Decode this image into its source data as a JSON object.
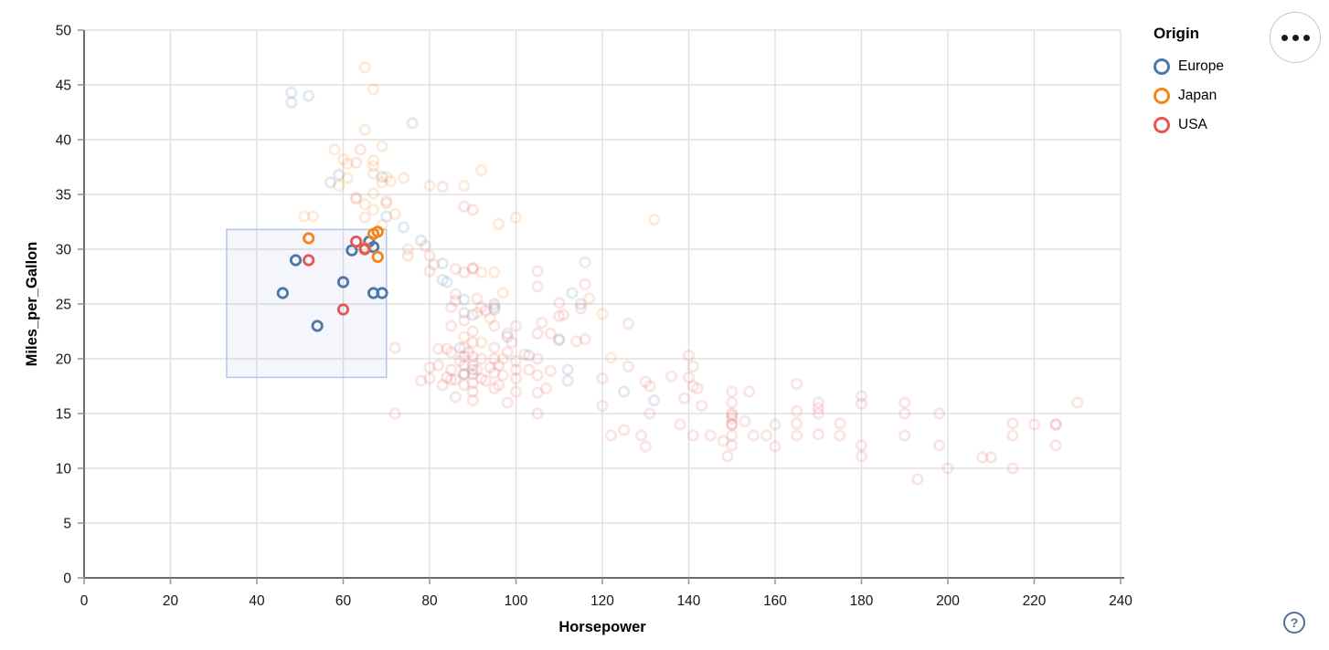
{
  "legend": {
    "title": "Origin",
    "items": [
      {
        "label": "Europe",
        "color": "#4c78a8"
      },
      {
        "label": "Japan",
        "color": "#f58518"
      },
      {
        "label": "USA",
        "color": "#e45756"
      }
    ]
  },
  "buttons": {
    "help_label": "?",
    "options_menu": "ellipsis-menu"
  },
  "chart_data": {
    "type": "scatter",
    "title": "",
    "xlabel": "Horsepower",
    "ylabel": "Miles_per_Gallon",
    "xlim": [
      0,
      240
    ],
    "ylim": [
      0,
      50
    ],
    "xticks": [
      0,
      20,
      40,
      60,
      80,
      100,
      120,
      140,
      160,
      180,
      200,
      220,
      240
    ],
    "yticks": [
      0,
      5,
      10,
      15,
      20,
      25,
      30,
      35,
      40,
      45,
      50
    ],
    "grid": true,
    "legend_position": "top-right",
    "legend_title": "Origin",
    "colors": {
      "Europe": "#4c78a8",
      "Japan": "#f58518",
      "USA": "#e45756"
    },
    "origin_codes": {
      "E": "Europe",
      "J": "Japan",
      "U": "USA"
    },
    "marker": {
      "shape": "open-circle",
      "radius": 5.2,
      "stroke_width": 2.8
    },
    "opacity": {
      "selected": 1.0,
      "unselected": 0.16
    },
    "brush_selection": {
      "x": [
        33,
        70
      ],
      "y": [
        18.3,
        31.8
      ],
      "fill": "#6e8fd1",
      "fill_opacity": 0.08,
      "stroke": "#b5c6ec"
    },
    "points": [
      [
        46,
        26,
        "E",
        1
      ],
      [
        49,
        29,
        "E",
        1
      ],
      [
        54,
        23,
        "E",
        1
      ],
      [
        60,
        27,
        "E",
        1
      ],
      [
        62,
        29.9,
        "E",
        1
      ],
      [
        66,
        30.7,
        "E",
        1
      ],
      [
        67,
        30.2,
        "E",
        1
      ],
      [
        67,
        26,
        "E",
        1
      ],
      [
        69,
        26,
        "E",
        1
      ],
      [
        52,
        31,
        "J",
        1
      ],
      [
        65,
        30.1,
        "J",
        1
      ],
      [
        67,
        31.4,
        "J",
        1
      ],
      [
        68,
        31.6,
        "J",
        1
      ],
      [
        68,
        29.3,
        "J",
        1
      ],
      [
        52,
        29,
        "U",
        1
      ],
      [
        60,
        24.5,
        "U",
        1
      ],
      [
        63,
        30.7,
        "U",
        1
      ],
      [
        65,
        30,
        "U",
        1
      ],
      [
        48,
        44.3,
        "E",
        0
      ],
      [
        48,
        43.4,
        "E",
        0
      ],
      [
        52,
        44,
        "E",
        0
      ],
      [
        76,
        41.5,
        "E",
        0
      ],
      [
        57,
        36.1,
        "E",
        0
      ],
      [
        59,
        36.8,
        "E",
        0
      ],
      [
        69,
        36.6,
        "E",
        0
      ],
      [
        74,
        32,
        "E",
        0
      ],
      [
        70,
        33,
        "E",
        0
      ],
      [
        78,
        30.8,
        "E",
        0
      ],
      [
        83,
        28.7,
        "E",
        0
      ],
      [
        84,
        27,
        "E",
        0
      ],
      [
        83,
        27.2,
        "E",
        0
      ],
      [
        88,
        24.2,
        "E",
        0
      ],
      [
        95,
        24.5,
        "E",
        0
      ],
      [
        87,
        21,
        "E",
        0
      ],
      [
        90,
        19,
        "E",
        0
      ],
      [
        88,
        18.6,
        "E",
        0
      ],
      [
        113,
        26,
        "E",
        0
      ],
      [
        112,
        19,
        "E",
        0
      ],
      [
        112,
        18,
        "E",
        0
      ],
      [
        115,
        25,
        "E",
        0
      ],
      [
        110,
        21.7,
        "E",
        0
      ],
      [
        125,
        17,
        "E",
        0
      ],
      [
        132,
        16.2,
        "E",
        0
      ],
      [
        103,
        20.3,
        "E",
        0
      ],
      [
        98,
        22,
        "E",
        0
      ],
      [
        90,
        24,
        "E",
        0
      ],
      [
        95,
        25,
        "E",
        0
      ],
      [
        88,
        25.4,
        "E",
        0
      ],
      [
        65,
        46.6,
        "J",
        0
      ],
      [
        67,
        44.6,
        "J",
        0
      ],
      [
        65,
        40.9,
        "J",
        0
      ],
      [
        69,
        39.4,
        "J",
        0
      ],
      [
        58,
        39.1,
        "J",
        0
      ],
      [
        60,
        38.2,
        "J",
        0
      ],
      [
        61,
        37.8,
        "J",
        0
      ],
      [
        67,
        38.1,
        "J",
        0
      ],
      [
        67,
        37.6,
        "J",
        0
      ],
      [
        67,
        36.9,
        "J",
        0
      ],
      [
        71,
        36.2,
        "J",
        0
      ],
      [
        70,
        36.6,
        "J",
        0
      ],
      [
        80,
        35.8,
        "J",
        0
      ],
      [
        88,
        35.8,
        "J",
        0
      ],
      [
        92,
        37.2,
        "J",
        0
      ],
      [
        59,
        35.8,
        "J",
        0
      ],
      [
        61,
        36.5,
        "J",
        0
      ],
      [
        63,
        34.6,
        "J",
        0
      ],
      [
        65,
        34.1,
        "J",
        0
      ],
      [
        67,
        35.1,
        "J",
        0
      ],
      [
        67,
        33.6,
        "J",
        0
      ],
      [
        69,
        36.1,
        "J",
        0
      ],
      [
        70,
        34.4,
        "J",
        0
      ],
      [
        72,
        33.2,
        "J",
        0
      ],
      [
        74,
        36.5,
        "J",
        0
      ],
      [
        51,
        33,
        "J",
        0
      ],
      [
        53,
        33,
        "J",
        0
      ],
      [
        96,
        32.3,
        "J",
        0
      ],
      [
        100,
        32.9,
        "J",
        0
      ],
      [
        132,
        32.7,
        "J",
        0
      ],
      [
        69,
        32.2,
        "J",
        0
      ],
      [
        75,
        30,
        "J",
        0
      ],
      [
        92,
        27.9,
        "J",
        0
      ],
      [
        95,
        27.9,
        "J",
        0
      ],
      [
        97,
        26,
        "J",
        0
      ],
      [
        117,
        25.5,
        "J",
        0
      ],
      [
        120,
        24.1,
        "J",
        0
      ],
      [
        122,
        20.1,
        "J",
        0
      ],
      [
        88,
        22,
        "J",
        0
      ],
      [
        92,
        21.5,
        "J",
        0
      ],
      [
        97,
        20,
        "J",
        0
      ],
      [
        91,
        24.2,
        "J",
        0
      ],
      [
        94,
        23.7,
        "J",
        0
      ],
      [
        64,
        39.1,
        "U",
        0
      ],
      [
        63,
        37.9,
        "U",
        0
      ],
      [
        83,
        35.7,
        "U",
        0
      ],
      [
        88,
        33.9,
        "U",
        0
      ],
      [
        90,
        33.6,
        "U",
        0
      ],
      [
        63,
        34.7,
        "U",
        0
      ],
      [
        65,
        32.9,
        "U",
        0
      ],
      [
        70,
        34.2,
        "U",
        0
      ],
      [
        75,
        29.4,
        "U",
        0
      ],
      [
        79,
        30.3,
        "U",
        0
      ],
      [
        80,
        29.4,
        "U",
        0
      ],
      [
        81,
        28.6,
        "U",
        0
      ],
      [
        80,
        28,
        "U",
        0
      ],
      [
        86,
        28.2,
        "U",
        0
      ],
      [
        88,
        27.9,
        "U",
        0
      ],
      [
        90,
        28.3,
        "U",
        0
      ],
      [
        90,
        28.2,
        "U",
        0
      ],
      [
        105,
        28,
        "U",
        0
      ],
      [
        105,
        26.6,
        "U",
        0
      ],
      [
        116,
        28.8,
        "U",
        0
      ],
      [
        116,
        26.8,
        "U",
        0
      ],
      [
        86,
        25.9,
        "U",
        0
      ],
      [
        86,
        25.3,
        "U",
        0
      ],
      [
        85,
        24.7,
        "U",
        0
      ],
      [
        91,
        25.5,
        "U",
        0
      ],
      [
        92,
        24.7,
        "U",
        0
      ],
      [
        93,
        24.4,
        "U",
        0
      ],
      [
        95,
        24.7,
        "U",
        0
      ],
      [
        110,
        25.1,
        "U",
        0
      ],
      [
        111,
        24,
        "U",
        0
      ],
      [
        115,
        24.6,
        "U",
        0
      ],
      [
        85,
        23,
        "U",
        0
      ],
      [
        88,
        23.5,
        "U",
        0
      ],
      [
        90,
        22.5,
        "U",
        0
      ],
      [
        95,
        23,
        "U",
        0
      ],
      [
        98,
        22.3,
        "U",
        0
      ],
      [
        100,
        23,
        "U",
        0
      ],
      [
        105,
        22.3,
        "U",
        0
      ],
      [
        108,
        22.3,
        "U",
        0
      ],
      [
        106,
        23.3,
        "U",
        0
      ],
      [
        110,
        21.8,
        "U",
        0
      ],
      [
        116,
        21.8,
        "U",
        0
      ],
      [
        114,
        21.6,
        "U",
        0
      ],
      [
        110,
        23.9,
        "U",
        0
      ],
      [
        72,
        21,
        "U",
        0
      ],
      [
        78,
        18,
        "U",
        0
      ],
      [
        72,
        15,
        "U",
        0
      ],
      [
        80,
        19.2,
        "U",
        0
      ],
      [
        80,
        18.2,
        "U",
        0
      ],
      [
        82,
        19.4,
        "U",
        0
      ],
      [
        82,
        20.9,
        "U",
        0
      ],
      [
        83,
        17.6,
        "U",
        0
      ],
      [
        84,
        18.3,
        "U",
        0
      ],
      [
        84,
        20.9,
        "U",
        0
      ],
      [
        85,
        20.6,
        "U",
        0
      ],
      [
        85,
        19,
        "U",
        0
      ],
      [
        85,
        18.1,
        "U",
        0
      ],
      [
        86,
        16.5,
        "U",
        0
      ],
      [
        86,
        18.1,
        "U",
        0
      ],
      [
        87,
        19.8,
        "U",
        0
      ],
      [
        88,
        21,
        "U",
        0
      ],
      [
        88,
        20.2,
        "U",
        0
      ],
      [
        88,
        19.4,
        "U",
        0
      ],
      [
        88,
        18.6,
        "U",
        0
      ],
      [
        88,
        17.6,
        "U",
        0
      ],
      [
        89,
        20.6,
        "U",
        0
      ],
      [
        90,
        21.5,
        "U",
        0
      ],
      [
        90,
        20.2,
        "U",
        0
      ],
      [
        90,
        19.4,
        "U",
        0
      ],
      [
        90,
        18.6,
        "U",
        0
      ],
      [
        90,
        17.8,
        "U",
        0
      ],
      [
        90,
        17,
        "U",
        0
      ],
      [
        90,
        16.2,
        "U",
        0
      ],
      [
        91,
        19,
        "U",
        0
      ],
      [
        92,
        20,
        "U",
        0
      ],
      [
        92,
        18.2,
        "U",
        0
      ],
      [
        93,
        18,
        "U",
        0
      ],
      [
        94,
        19.2,
        "U",
        0
      ],
      [
        95,
        21,
        "U",
        0
      ],
      [
        95,
        20,
        "U",
        0
      ],
      [
        95,
        18.7,
        "U",
        0
      ],
      [
        95,
        17.3,
        "U",
        0
      ],
      [
        96,
        19.4,
        "U",
        0
      ],
      [
        96,
        17.6,
        "U",
        0
      ],
      [
        97,
        18.5,
        "U",
        0
      ],
      [
        98,
        16,
        "U",
        0
      ],
      [
        98,
        20.6,
        "U",
        0
      ],
      [
        99,
        21.5,
        "U",
        0
      ],
      [
        100,
        19.8,
        "U",
        0
      ],
      [
        100,
        19,
        "U",
        0
      ],
      [
        100,
        18.2,
        "U",
        0
      ],
      [
        100,
        17,
        "U",
        0
      ],
      [
        102,
        20.4,
        "U",
        0
      ],
      [
        103,
        19,
        "U",
        0
      ],
      [
        105,
        20,
        "U",
        0
      ],
      [
        105,
        18.5,
        "U",
        0
      ],
      [
        105,
        16.9,
        "U",
        0
      ],
      [
        105,
        15,
        "U",
        0
      ],
      [
        107,
        17.3,
        "U",
        0
      ],
      [
        108,
        18.9,
        "U",
        0
      ],
      [
        120,
        18.2,
        "U",
        0
      ],
      [
        120,
        15.7,
        "U",
        0
      ],
      [
        126,
        23.2,
        "U",
        0
      ],
      [
        126,
        19.3,
        "U",
        0
      ],
      [
        130,
        17.9,
        "U",
        0
      ],
      [
        131,
        17.5,
        "U",
        0
      ],
      [
        131,
        15,
        "U",
        0
      ],
      [
        136,
        18.4,
        "U",
        0
      ],
      [
        140,
        20.3,
        "U",
        0
      ],
      [
        141,
        19.3,
        "U",
        0
      ],
      [
        140,
        18.3,
        "U",
        0
      ],
      [
        141,
        17.5,
        "U",
        0
      ],
      [
        139,
        16.4,
        "U",
        0
      ],
      [
        142,
        17.3,
        "U",
        0
      ],
      [
        143,
        15.7,
        "U",
        0
      ],
      [
        141,
        13,
        "U",
        0
      ],
      [
        138,
        14,
        "U",
        0
      ],
      [
        122,
        13,
        "U",
        0
      ],
      [
        125,
        13.5,
        "U",
        0
      ],
      [
        129,
        13,
        "U",
        0
      ],
      [
        130,
        12,
        "U",
        0
      ],
      [
        145,
        13,
        "U",
        0
      ],
      [
        148,
        12.5,
        "U",
        0
      ],
      [
        150,
        17,
        "U",
        0
      ],
      [
        150,
        16,
        "U",
        0
      ],
      [
        150,
        15,
        "U",
        0
      ],
      [
        150,
        14.8,
        "U",
        0
      ],
      [
        150,
        14.5,
        "U",
        0
      ],
      [
        150,
        14,
        "U",
        0
      ],
      [
        150,
        14,
        "U",
        0
      ],
      [
        150,
        13,
        "U",
        0
      ],
      [
        150,
        12.1,
        "U",
        0
      ],
      [
        149,
        11.1,
        "U",
        0
      ],
      [
        153,
        14.3,
        "U",
        0
      ],
      [
        154,
        17,
        "U",
        0
      ],
      [
        155,
        13,
        "U",
        0
      ],
      [
        158,
        13,
        "U",
        0
      ],
      [
        160,
        14,
        "U",
        0
      ],
      [
        160,
        12,
        "U",
        0
      ],
      [
        165,
        17.7,
        "U",
        0
      ],
      [
        165,
        15.2,
        "U",
        0
      ],
      [
        165,
        14.1,
        "U",
        0
      ],
      [
        165,
        13,
        "U",
        0
      ],
      [
        170,
        16,
        "U",
        0
      ],
      [
        170,
        15.5,
        "U",
        0
      ],
      [
        170,
        15,
        "U",
        0
      ],
      [
        170,
        13.1,
        "U",
        0
      ],
      [
        175,
        14.1,
        "U",
        0
      ],
      [
        175,
        13,
        "U",
        0
      ],
      [
        180,
        16.6,
        "U",
        0
      ],
      [
        180,
        15.9,
        "U",
        0
      ],
      [
        180,
        12.1,
        "U",
        0
      ],
      [
        180,
        11.1,
        "U",
        0
      ],
      [
        190,
        16,
        "U",
        0
      ],
      [
        190,
        15,
        "U",
        0
      ],
      [
        190,
        13,
        "U",
        0
      ],
      [
        193,
        9,
        "U",
        0
      ],
      [
        198,
        15,
        "U",
        0
      ],
      [
        198,
        12.1,
        "U",
        0
      ],
      [
        200,
        10,
        "U",
        0
      ],
      [
        208,
        11,
        "U",
        0
      ],
      [
        210,
        11,
        "U",
        0
      ],
      [
        215,
        14.1,
        "U",
        0
      ],
      [
        215,
        13,
        "U",
        0
      ],
      [
        215,
        10,
        "U",
        0
      ],
      [
        220,
        14,
        "U",
        0
      ],
      [
        225,
        14,
        "U",
        0
      ],
      [
        225,
        14,
        "U",
        0
      ],
      [
        225,
        12.1,
        "U",
        0
      ],
      [
        230,
        16,
        "U",
        0
      ]
    ]
  }
}
